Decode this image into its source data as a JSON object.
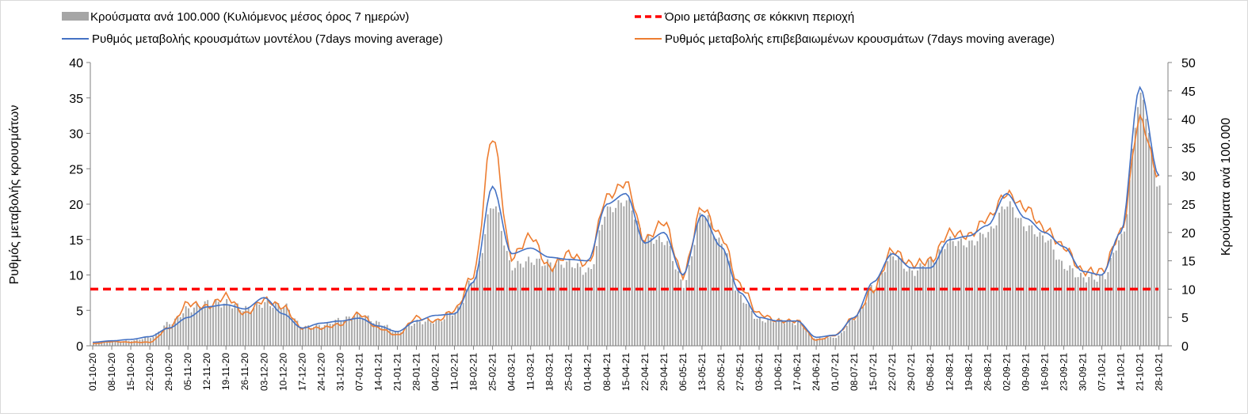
{
  "chart_data": {
    "type": "bar+line",
    "xlabel": "",
    "ylabel_left": "Ρυθμός μεταβολής κρουσμάτων",
    "ylabel_right": "Κρούσματα ανά 100.000",
    "ylim_left": [
      0,
      40
    ],
    "yticks_left": [
      "0",
      "5",
      "10",
      "15",
      "20",
      "25",
      "30",
      "35",
      "40"
    ],
    "ylim_right": [
      0,
      50
    ],
    "yticks_right": [
      "0",
      "5",
      "10",
      "15",
      "20",
      "25",
      "30",
      "35",
      "40",
      "45",
      "50"
    ],
    "date_ticks": [
      "01-10-20",
      "08-10-20",
      "15-10-20",
      "22-10-20",
      "29-10-20",
      "05-11-20",
      "12-11-20",
      "19-11-20",
      "26-11-20",
      "03-12-20",
      "10-12-20",
      "17-12-20",
      "24-12-20",
      "31-12-20",
      "07-01-21",
      "14-01-21",
      "21-01-21",
      "28-01-21",
      "04-02-21",
      "11-02-21",
      "18-02-21",
      "25-02-21",
      "04-03-21",
      "11-03-21",
      "18-03-21",
      "25-03-21",
      "01-04-21",
      "08-04-21",
      "15-04-21",
      "22-04-21",
      "29-04-21",
      "06-05-21",
      "13-05-21",
      "20-05-21",
      "27-05-21",
      "03-06-21",
      "10-06-21",
      "17-06-21",
      "24-06-21",
      "01-07-21",
      "08-07-21",
      "15-07-21",
      "22-07-21",
      "29-07-21",
      "05-08-21",
      "12-08-21",
      "19-08-21",
      "26-08-21",
      "02-09-21",
      "09-09-21",
      "16-09-21",
      "23-09-21",
      "30-09-21",
      "07-10-21",
      "14-10-21",
      "21-10-21",
      "28-10-21"
    ],
    "legend": {
      "bars": "Κρούσματα ανά 100.000 (Κυλιόμενος μέσος όρος 7 ημερών)",
      "threshold": "Όριο μετάβασης σε κόκκινη περιοχή",
      "model": "Ρυθμός μεταβολής κρουσμάτων μοντέλου (7days moving average)",
      "confirmed": "Ρυθμός μεταβολής επιβεβαιωμένων κρουσμάτων (7days moving average)"
    },
    "threshold_left_value": 8,
    "colors": {
      "bars": "#a6a6a6",
      "threshold": "#ff0000",
      "model": "#4472c4",
      "confirmed": "#ed7d31"
    },
    "bars_per_100k_weekly": [
      0.3,
      0.7,
      0.9,
      1.5,
      4.0,
      6.5,
      7.5,
      7.5,
      6.5,
      7.5,
      7.0,
      3.3,
      3.6,
      4.6,
      5.5,
      4.0,
      2.4,
      4.2,
      4.3,
      6.0,
      12.0,
      25.0,
      14.0,
      15.0,
      14.5,
      14.5,
      13.0,
      24.0,
      25.5,
      19.0,
      18.5,
      11.0,
      23.5,
      18.0,
      8.5,
      4.5,
      4.5,
      4.0,
      1.3,
      1.5,
      5.0,
      10.5,
      16.0,
      13.0,
      15.0,
      18.5,
      18.0,
      20.0,
      25.0,
      21.0,
      19.0,
      14.0,
      12.0,
      12.0,
      19.0,
      44.0,
      28.0
    ],
    "model_rate_weekly": [
      0.5,
      0.7,
      0.9,
      1.3,
      2.5,
      4.0,
      5.5,
      5.8,
      5.2,
      6.8,
      4.5,
      2.5,
      3.2,
      3.5,
      3.9,
      2.8,
      2.0,
      3.5,
      4.3,
      4.5,
      9.0,
      22.5,
      13.0,
      13.8,
      12.5,
      12.2,
      12.0,
      20.0,
      21.5,
      14.5,
      16.0,
      10.0,
      18.5,
      14.0,
      7.5,
      4.0,
      3.5,
      3.5,
      1.2,
      1.5,
      4.0,
      9.0,
      13.0,
      11.0,
      11.0,
      15.0,
      15.5,
      17.0,
      21.5,
      18.0,
      16.0,
      14.0,
      10.5,
      10.0,
      16.0,
      36.5,
      24.0
    ],
    "confirmed_rate_weekly": [
      0.3,
      0.6,
      0.5,
      0.5,
      2.5,
      6.0,
      5.5,
      7.0,
      4.5,
      6.5,
      5.5,
      2.5,
      2.5,
      3.0,
      4.5,
      2.5,
      1.5,
      4.0,
      3.5,
      5.0,
      10.0,
      29.5,
      12.5,
      15.5,
      11.0,
      13.0,
      11.5,
      21.0,
      23.0,
      15.0,
      17.5,
      10.0,
      19.5,
      15.5,
      8.5,
      4.5,
      3.5,
      3.5,
      0.8,
      1.5,
      4.0,
      8.0,
      13.5,
      11.5,
      12.0,
      16.0,
      15.5,
      18.0,
      21.5,
      19.5,
      16.5,
      14.0,
      10.5,
      10.5,
      16.0,
      32.0,
      24.0
    ]
  }
}
